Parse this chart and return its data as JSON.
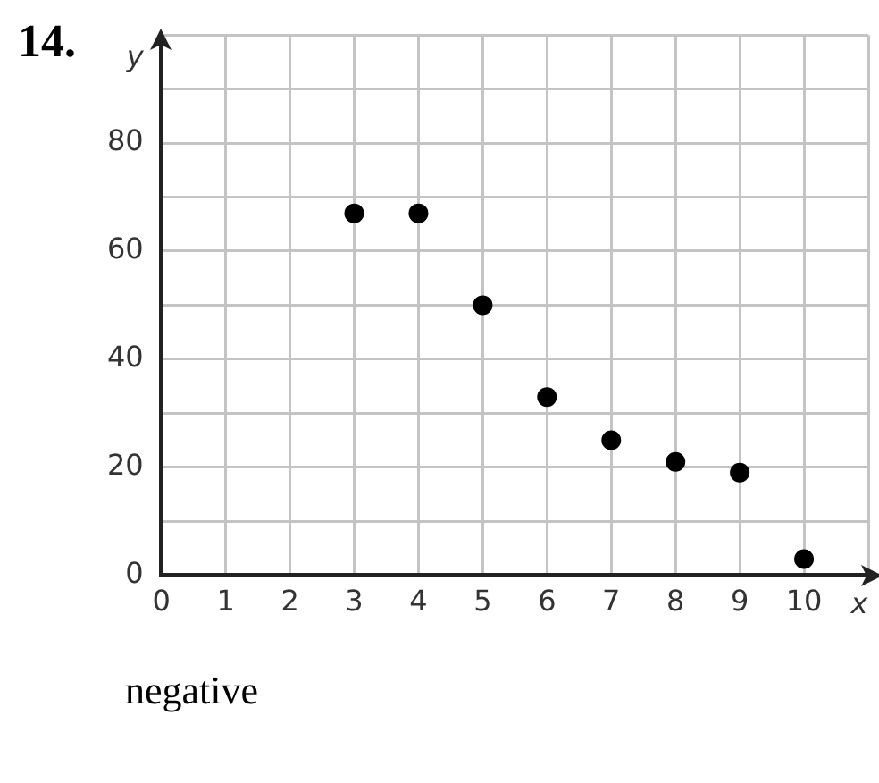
{
  "chart_data": {
    "type": "scatter",
    "title": "14.",
    "xlabel": "x",
    "ylabel": "y",
    "x": [
      3,
      4,
      5,
      6,
      7,
      8,
      9,
      10
    ],
    "values": [
      67,
      67,
      50,
      33,
      25,
      21,
      19,
      3
    ],
    "color": "#000000",
    "marker": "circle",
    "grid": true,
    "legend": false,
    "xlim": [
      0,
      11
    ],
    "xticks": [
      0,
      1,
      2,
      3,
      4,
      5,
      6,
      7,
      8,
      9,
      10,
      {
        "value": 11,
        "label": null
      }
    ],
    "ylim": [
      0,
      100
    ],
    "yticks": [
      0,
      {
        "value": 10,
        "label": null
      },
      20,
      {
        "value": 30,
        "label": null
      },
      40,
      {
        "value": 50,
        "label": null
      },
      60,
      {
        "value": 70,
        "label": null
      },
      80,
      {
        "value": 90,
        "label": null
      },
      {
        "value": 100,
        "label": null
      }
    ],
    "annotations": [
      "negative"
    ]
  }
}
